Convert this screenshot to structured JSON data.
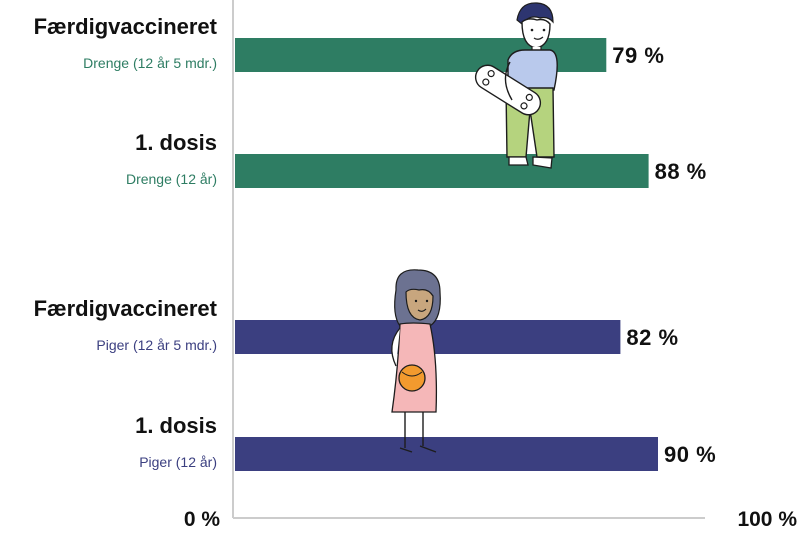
{
  "colors": {
    "boys": "#2e7d63",
    "girls": "#3b3f80",
    "axis": "#cccccc",
    "text": "#111111"
  },
  "illustrations": {
    "boy": "boy-with-skateboard-illustration",
    "girl": "girl-with-ball-illustration"
  },
  "chart_data": {
    "type": "bar",
    "orientation": "horizontal",
    "xlim": [
      0,
      100
    ],
    "x_tick_labels": [
      "0 %",
      "100 %"
    ],
    "grid": false,
    "bars": [
      {
        "label": "Færdigvaccineret",
        "sublabel": "Drenge (12 år 5 mdr.)",
        "value": 79,
        "value_label": "79 %",
        "group": "boys"
      },
      {
        "label": "1. dosis",
        "sublabel": "Drenge (12 år)",
        "value": 88,
        "value_label": "88 %",
        "group": "boys"
      },
      {
        "label": "Færdigvaccineret",
        "sublabel": "Piger (12 år 5 mdr.)",
        "value": 82,
        "value_label": "82 %",
        "group": "girls"
      },
      {
        "label": "1. dosis",
        "sublabel": "Piger (12 år)",
        "value": 90,
        "value_label": "90 %",
        "group": "girls"
      }
    ]
  }
}
